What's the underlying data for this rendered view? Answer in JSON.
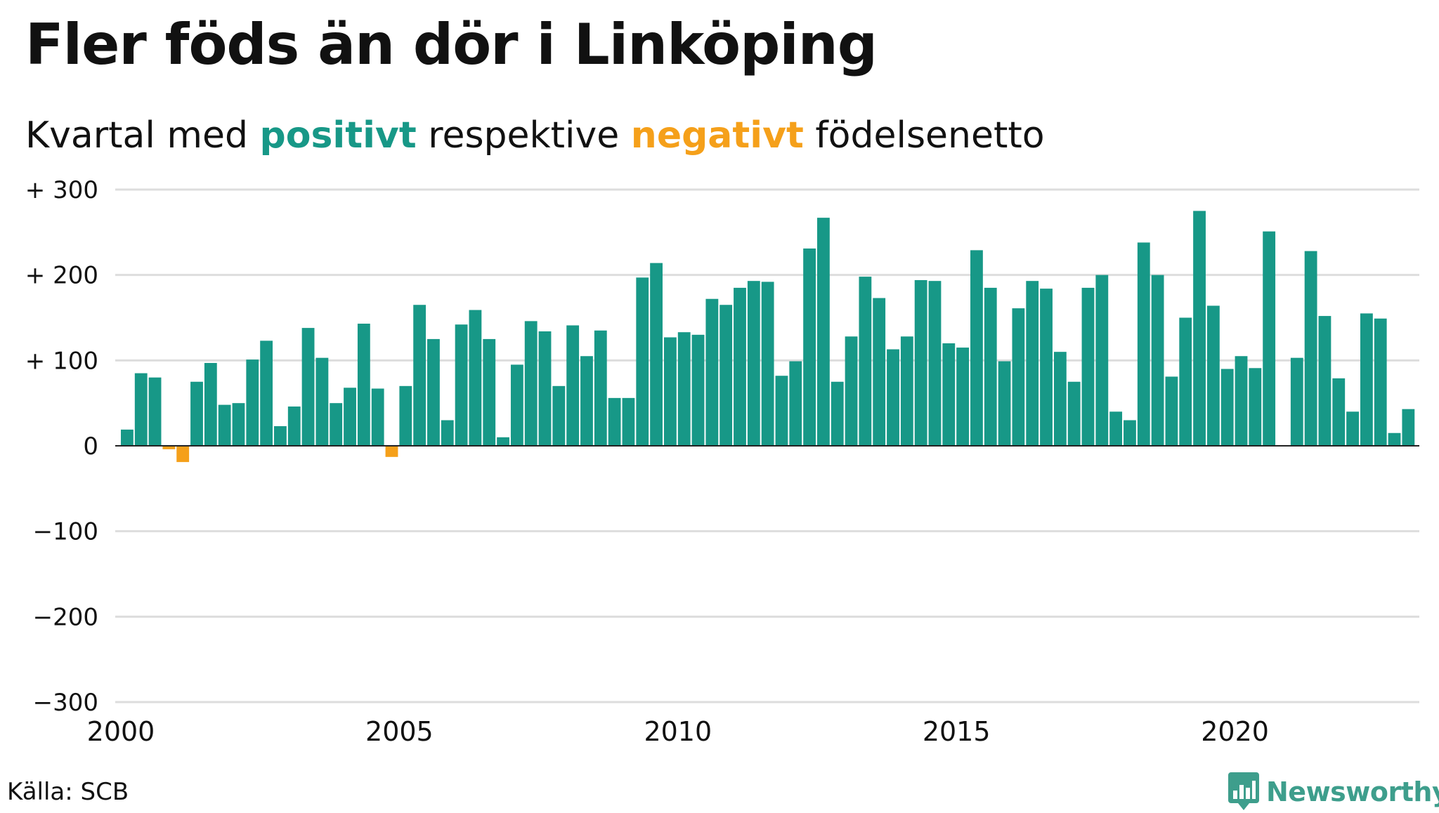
{
  "title": "Fler föds än dör i Linköping",
  "subtitle": {
    "part1": "Kvartal med ",
    "positive_word": "positivt",
    "part2": " respektive ",
    "negative_word": "negativt",
    "part3": " födelsenetto"
  },
  "colors": {
    "positive": "#179887",
    "negative": "#f5a01a",
    "grid": "#dddddd",
    "zero_line": "#222222",
    "text": "#111111",
    "brand": "#3e9e8c"
  },
  "source": "Källa: SCB",
  "brand": {
    "name": "Newsworthy",
    "icon": "bar-chart-logo-icon"
  },
  "chart_data": {
    "type": "bar",
    "title": "Fler föds än dör i Linköping",
    "subtitle": "Kvartal med positivt respektive negativt födelsenetto",
    "xlabel": "",
    "ylabel": "",
    "ylim": [
      -300,
      300
    ],
    "yticks": [
      300,
      200,
      100,
      0,
      -100,
      -200,
      -300
    ],
    "ytick_labels": [
      "+ 300",
      "+ 200",
      "+ 100",
      "0",
      "−100",
      "−200",
      "−300"
    ],
    "xticks": [
      2000,
      2005,
      2010,
      2015,
      2020
    ],
    "xtick_labels": [
      "2000",
      "2005",
      "2010",
      "2015",
      "2020"
    ],
    "grid": "horizontal",
    "first_period": "2000-Q1",
    "values": [
      19,
      85,
      80,
      -4,
      -19,
      75,
      97,
      48,
      50,
      101,
      123,
      23,
      46,
      138,
      103,
      50,
      68,
      143,
      67,
      -13,
      70,
      165,
      125,
      30,
      142,
      159,
      125,
      10,
      95,
      146,
      134,
      70,
      141,
      105,
      135,
      56,
      56,
      197,
      214,
      127,
      133,
      130,
      172,
      165,
      185,
      193,
      192,
      82,
      99,
      231,
      267,
      75,
      128,
      198,
      173,
      113,
      128,
      194,
      193,
      120,
      115,
      229,
      185,
      99,
      161,
      193,
      184,
      110,
      75,
      185,
      200,
      40,
      30,
      238,
      200,
      81,
      150,
      275,
      164,
      90,
      105,
      91,
      251,
      0,
      103,
      228,
      152,
      79,
      40,
      155,
      149,
      15,
      43
    ]
  }
}
